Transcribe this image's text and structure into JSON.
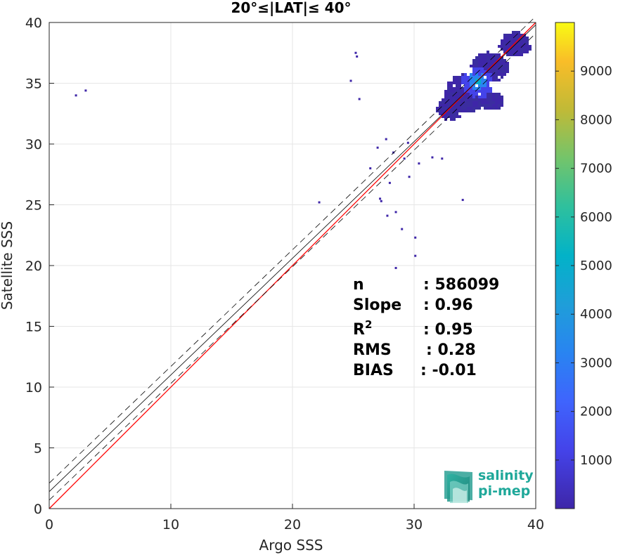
{
  "chart_data": {
    "type": "heatmap",
    "title": "20°≤|LAT|≤ 40°",
    "xlabel": "Argo SSS",
    "ylabel": "Satellite SSS",
    "xlim": [
      0,
      40
    ],
    "ylim": [
      0,
      40
    ],
    "xticks": [
      "0",
      "10",
      "20",
      "30",
      "40"
    ],
    "yticks": [
      "0",
      "5",
      "10",
      "15",
      "20",
      "25",
      "30",
      "35",
      "40"
    ],
    "grid": true,
    "colorbar": {
      "colormap": "parula",
      "range": [
        1,
        10000
      ],
      "ticks": [
        "1000",
        "2000",
        "3000",
        "4000",
        "5000",
        "6000",
        "7000",
        "8000",
        "9000"
      ],
      "tick_values": [
        1000,
        2000,
        3000,
        4000,
        5000,
        6000,
        7000,
        8000,
        9000
      ]
    },
    "lines": [
      {
        "name": "one-to-one",
        "color": "#ff0000",
        "style": "solid",
        "intercept": 0,
        "slope": 1
      },
      {
        "name": "regression",
        "color": "#000000",
        "style": "solid",
        "intercept": 1.4,
        "slope": 0.96
      },
      {
        "name": "regression-upper",
        "color": "#000000",
        "style": "dashed",
        "intercept": 2.1,
        "slope": 0.96
      },
      {
        "name": "regression-lower",
        "color": "#000000",
        "style": "dashed",
        "intercept": 0.7,
        "slope": 0.96
      }
    ],
    "density_core": {
      "x": 35.2,
      "y": 35.1
    },
    "outliers": [
      [
        2.2,
        34.0
      ],
      [
        3.0,
        34.4
      ],
      [
        25.2,
        37.5
      ],
      [
        25.3,
        37.2
      ],
      [
        24.8,
        35.2
      ],
      [
        25.5,
        33.7
      ],
      [
        22.2,
        25.2
      ],
      [
        26.4,
        28.0
      ],
      [
        27.3,
        25.3
      ],
      [
        28.5,
        24.4
      ],
      [
        29.0,
        23.0
      ],
      [
        30.1,
        22.3
      ],
      [
        30.1,
        20.8
      ],
      [
        28.5,
        19.8
      ],
      [
        27.2,
        25.5
      ],
      [
        27.8,
        24.1
      ],
      [
        29.6,
        27.3
      ],
      [
        28.0,
        26.8
      ],
      [
        34.0,
        25.4
      ],
      [
        29.5,
        30.1
      ],
      [
        27.7,
        30.4
      ],
      [
        28.3,
        29.3
      ],
      [
        29.2,
        28.8
      ],
      [
        30.4,
        28.4
      ],
      [
        31.5,
        28.9
      ],
      [
        32.3,
        28.8
      ],
      [
        27.0,
        29.7
      ]
    ],
    "stats": [
      {
        "label": "n",
        "sep": ": 586099"
      },
      {
        "label": "Slope",
        "sep": ": 0.96"
      },
      {
        "label": "R",
        "sup": "2",
        "sep": ": 0.95"
      },
      {
        "label": "RMS",
        "sep": ": 0.28"
      },
      {
        "label": "BIAS",
        "sep": ": -0.01"
      }
    ]
  },
  "logo": {
    "line1": "salinity",
    "line2": "pi-mep"
  },
  "colors": {
    "one_to_one": "#ff0000",
    "regression": "#000000",
    "logo": "#1fa89a"
  }
}
